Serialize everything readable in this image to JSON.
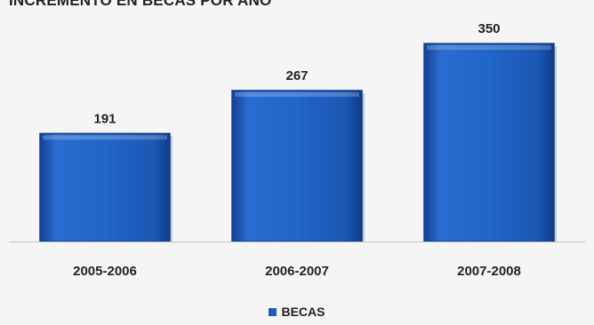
{
  "chart_data": {
    "type": "bar",
    "title": "INCREMENTO EN BECAS POR AÑO",
    "categories": [
      "2005-2006",
      "2006-2007",
      "2007-2008"
    ],
    "series": [
      {
        "name": "BECAS",
        "values": [
          191,
          267,
          350
        ]
      }
    ],
    "data_labels": [
      "191",
      "267",
      "350"
    ],
    "ylim": [
      0,
      380
    ],
    "grid": false,
    "legend_position": "bottom",
    "bar_color": "#1f5dbb",
    "bar_edge_color": "#0f3f8f"
  }
}
